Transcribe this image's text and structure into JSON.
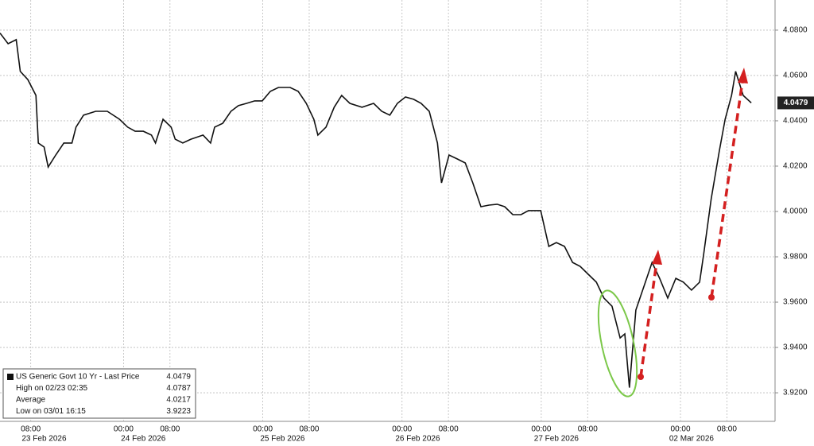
{
  "chart_data": {
    "type": "line",
    "x": [
      2.7,
      4.1,
      5.5,
      6.2,
      7.5,
      8.9,
      9.3,
      10.3,
      11.0,
      12.3,
      13.7,
      15.1,
      15.8,
      17.1,
      19.2,
      21.2,
      23.3,
      24.7,
      26.0,
      27.4,
      28.8,
      29.5,
      30.8,
      32.2,
      32.9,
      34.2,
      35.6,
      37.7,
      39.0,
      39.7,
      41.1,
      42.5,
      43.8,
      45.2,
      46.6,
      47.9,
      49.3,
      50.7,
      52.7,
      54.1,
      55.5,
      56.8,
      57.5,
      58.9,
      60.3,
      61.6,
      63.0,
      65.1,
      67.1,
      68.5,
      69.9,
      71.2,
      72.6,
      74.0,
      75.3,
      76.7,
      78.1,
      78.8,
      80.1,
      81.5,
      82.9,
      84.2,
      85.6,
      87.0,
      88.4,
      89.7,
      91.1,
      92.5,
      93.8,
      95.9,
      97.3,
      98.6,
      100.0,
      101.4,
      102.7,
      104.1,
      105.5,
      106.8,
      108.2,
      109.6,
      110.4,
      111.2,
      112.3,
      113.7,
      115.1,
      116.4,
      117.8,
      119.2,
      120.5,
      121.9,
      123.3,
      124.0,
      125.3,
      126.7,
      127.7,
      128.8,
      129.5,
      130.8,
      132.2
    ],
    "series": [
      {
        "name": "US Generic Govt 10 Yr - Last Price",
        "color": "#111111",
        "values": [
          4.0787,
          4.074,
          4.0758,
          4.0618,
          4.0582,
          4.0512,
          4.0302,
          4.0284,
          4.0196,
          4.0249,
          4.0302,
          4.0302,
          4.0372,
          4.0425,
          4.0442,
          4.0442,
          4.0407,
          4.0372,
          4.0354,
          4.0354,
          4.0337,
          4.0302,
          4.0407,
          4.0372,
          4.0319,
          4.0302,
          4.0319,
          4.0337,
          4.0302,
          4.0372,
          4.0389,
          4.0442,
          4.0467,
          4.0477,
          4.0488,
          4.0488,
          4.053,
          4.0547,
          4.0547,
          4.053,
          4.0477,
          4.0407,
          4.0337,
          4.0372,
          4.046,
          4.0512,
          4.0477,
          4.046,
          4.0477,
          4.0442,
          4.0425,
          4.0477,
          4.0505,
          4.0495,
          4.0477,
          4.0442,
          4.0302,
          4.0126,
          4.0249,
          4.0232,
          4.0214,
          4.0126,
          4.0021,
          4.0028,
          4.0032,
          4.0021,
          3.9986,
          3.9986,
          4.0004,
          4.0004,
          3.9846,
          3.9863,
          3.9846,
          3.9775,
          3.9758,
          3.9723,
          3.9688,
          3.9618,
          3.9582,
          3.9442,
          3.946,
          3.9223,
          3.9565,
          3.967,
          3.9775,
          3.9705,
          3.9618,
          3.9705,
          3.9688,
          3.9653,
          3.9688,
          3.9811,
          4.0056,
          4.0267,
          4.0407,
          4.0512,
          4.0618,
          4.0512,
          4.0479
        ]
      }
    ],
    "xlim": [
      2.7,
      136.3
    ],
    "ylim": [
      3.9074,
      4.0933
    ],
    "yticks": [
      {
        "value": 3.92,
        "label": "3.9200"
      },
      {
        "value": 3.94,
        "label": "3.9400"
      },
      {
        "value": 3.96,
        "label": "3.9600"
      },
      {
        "value": 3.98,
        "label": "3.9800"
      },
      {
        "value": 4.0,
        "label": "4.0000"
      },
      {
        "value": 4.02,
        "label": "4.0200"
      },
      {
        "value": 4.04,
        "label": "4.0400"
      },
      {
        "value": 4.06,
        "label": "4.0600"
      },
      {
        "value": 4.08,
        "label": "4.0800"
      }
    ],
    "xticks": [
      {
        "value": 8,
        "label": "08:00"
      },
      {
        "value": 24,
        "label": "00:00"
      },
      {
        "value": 32,
        "label": "08:00"
      },
      {
        "value": 48,
        "label": "00:00"
      },
      {
        "value": 56,
        "label": "08:00"
      },
      {
        "value": 72,
        "label": "00:00"
      },
      {
        "value": 80,
        "label": "08:00"
      },
      {
        "value": 96,
        "label": "00:00"
      },
      {
        "value": 104,
        "label": "08:00"
      },
      {
        "value": 120,
        "label": "00:00"
      },
      {
        "value": 128,
        "label": "08:00"
      }
    ],
    "xdates": [
      {
        "value": 10.3,
        "label": "23 Feb 2026"
      },
      {
        "value": 27.4,
        "label": "24 Feb 2026"
      },
      {
        "value": 51.4,
        "label": "25 Feb 2026"
      },
      {
        "value": 74.7,
        "label": "26 Feb 2026"
      },
      {
        "value": 98.6,
        "label": "27 Feb 2026"
      },
      {
        "value": 121.9,
        "label": "02 Mar 2026"
      }
    ],
    "last_price": 4.0479,
    "grid": true,
    "legend": [
      {
        "label": "US Generic Govt 10 Yr - Last Price",
        "value": 4.0479
      },
      {
        "label": "High on 02/23 02:35",
        "value": 4.0787
      },
      {
        "label": "Average",
        "value": 4.0217
      },
      {
        "label": "Low on 03/01 16:15",
        "value": 3.9223
      }
    ]
  }
}
